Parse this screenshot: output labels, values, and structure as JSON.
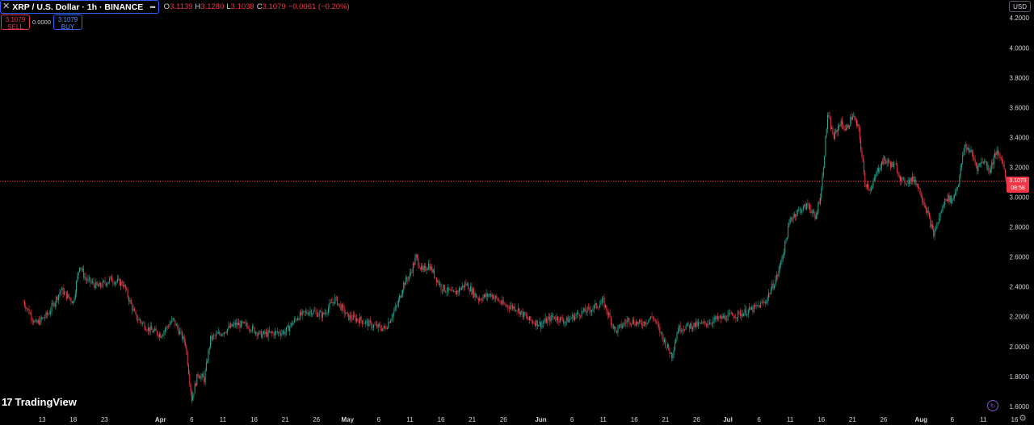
{
  "header": {
    "symbol_title": "XRP / U.S. Dollar · 1h · BINANCE",
    "more_label": "•••",
    "ohlc": [
      {
        "k": "O",
        "v": "3.1139"
      },
      {
        "k": "H",
        "v": "3.1280"
      },
      {
        "k": "L",
        "v": "3.1038"
      },
      {
        "k": "C",
        "v": "3.1079"
      },
      {
        "k": "",
        "v": "−0.0061 (−0.20%)"
      }
    ]
  },
  "trade_panel": {
    "sell_price": "3.1079",
    "sell_label": "SELL",
    "spread": "0.0000",
    "buy_price": "3.1079",
    "buy_label": "BUY"
  },
  "currency_button": "USD",
  "logo_text": "TradingView",
  "price_tag": {
    "price": "3.1079",
    "countdown": "08:58",
    "value": 3.1079
  },
  "colors": {
    "up": "#22ab94",
    "down": "#f23645",
    "background": "#000000",
    "axis_text": "#d1d4dc",
    "accent": "#2962ff"
  },
  "chart_data": {
    "type": "line",
    "title": "XRP / U.S. Dollar · 1h · BINANCE",
    "ylim": [
      1.54,
      4.32
    ],
    "y_ticks": [
      "4.2000",
      "4.0000",
      "3.8000",
      "3.6000",
      "3.4000",
      "3.2000",
      "3.0000",
      "2.8000",
      "2.6000",
      "2.4000",
      "2.2000",
      "2.0000",
      "1.8000",
      "1.6000"
    ],
    "x_ticks": [
      "13",
      "18",
      "23",
      "Apr",
      "6",
      "11",
      "16",
      "21",
      "26",
      "May",
      "6",
      "11",
      "16",
      "21",
      "26",
      "Jun",
      "6",
      "11",
      "16",
      "21",
      "26",
      "Jul",
      "6",
      "11",
      "16",
      "21",
      "26",
      "Aug",
      "6",
      "11",
      "16"
    ],
    "x_tick_bold": [
      "Apr",
      "May",
      "Jun",
      "Jul",
      "Aug"
    ],
    "series": [
      {
        "x": [
          "Mar 10",
          "Mar 12",
          "Mar 14",
          "Mar 16",
          "Mar 18",
          "Mar 19",
          "Mar 20",
          "Mar 22",
          "Mar 24",
          "Mar 26",
          "Mar 28",
          "Mar 30",
          "Apr 1",
          "Apr 3",
          "Apr 5",
          "Apr 6",
          "Apr 7",
          "Apr 8",
          "Apr 9",
          "Apr 11",
          "Apr 13",
          "Apr 15",
          "Apr 17",
          "Apr 19",
          "Apr 21",
          "Apr 23",
          "Apr 25",
          "Apr 27",
          "Apr 29",
          "May 1",
          "May 3",
          "May 5",
          "May 7",
          "May 9",
          "May 10",
          "May 11",
          "May 12",
          "May 13",
          "May 14",
          "May 16",
          "May 18",
          "May 20",
          "May 22",
          "May 24",
          "May 26",
          "May 28",
          "May 30",
          "Jun 1",
          "Jun 3",
          "Jun 5",
          "Jun 7",
          "Jun 9",
          "Jun 11",
          "Jun 13",
          "Jun 15",
          "Jun 17",
          "Jun 19",
          "Jun 21",
          "Jun 22",
          "Jun 23",
          "Jun 25",
          "Jun 27",
          "Jun 29",
          "Jul 1",
          "Jul 3",
          "Jul 5",
          "Jul 7",
          "Jul 9",
          "Jul 10",
          "Jul 11",
          "Jul 12",
          "Jul 14",
          "Jul 15",
          "Jul 16",
          "Jul 17",
          "Jul 18",
          "Jul 19",
          "Jul 20",
          "Jul 21",
          "Jul 22",
          "Jul 23",
          "Jul 24",
          "Jul 25",
          "Jul 26",
          "Jul 28",
          "Jul 29",
          "Jul 31",
          "Aug 1",
          "Aug 2",
          "Aug 3",
          "Aug 5",
          "Aug 6",
          "Aug 7",
          "Aug 8",
          "Aug 9",
          "Aug 10",
          "Aug 11",
          "Aug 12",
          "Aug 13",
          "Aug 14",
          "Aug 15",
          "Aug 16"
        ],
        "y": [
          2.3,
          2.15,
          2.22,
          2.38,
          2.3,
          2.55,
          2.45,
          2.4,
          2.45,
          2.42,
          2.2,
          2.12,
          2.08,
          2.18,
          2.02,
          1.65,
          1.82,
          1.78,
          2.05,
          2.1,
          2.15,
          2.14,
          2.08,
          2.09,
          2.1,
          2.2,
          2.24,
          2.21,
          2.32,
          2.2,
          2.18,
          2.14,
          2.12,
          2.28,
          2.42,
          2.48,
          2.6,
          2.5,
          2.55,
          2.4,
          2.35,
          2.42,
          2.32,
          2.35,
          2.28,
          2.26,
          2.18,
          2.15,
          2.2,
          2.17,
          2.22,
          2.25,
          2.3,
          2.1,
          2.18,
          2.15,
          2.2,
          2.02,
          1.94,
          2.12,
          2.14,
          2.15,
          2.18,
          2.2,
          2.22,
          2.25,
          2.3,
          2.48,
          2.65,
          2.85,
          2.9,
          2.95,
          2.85,
          3.05,
          3.55,
          3.4,
          3.5,
          3.45,
          3.55,
          3.45,
          3.1,
          3.05,
          3.18,
          3.25,
          3.2,
          3.1,
          3.12,
          3.02,
          2.9,
          2.75,
          3.0,
          2.98,
          3.1,
          3.35,
          3.3,
          3.2,
          3.25,
          3.18,
          3.3,
          3.25,
          3.05,
          3.1
        ]
      }
    ]
  }
}
